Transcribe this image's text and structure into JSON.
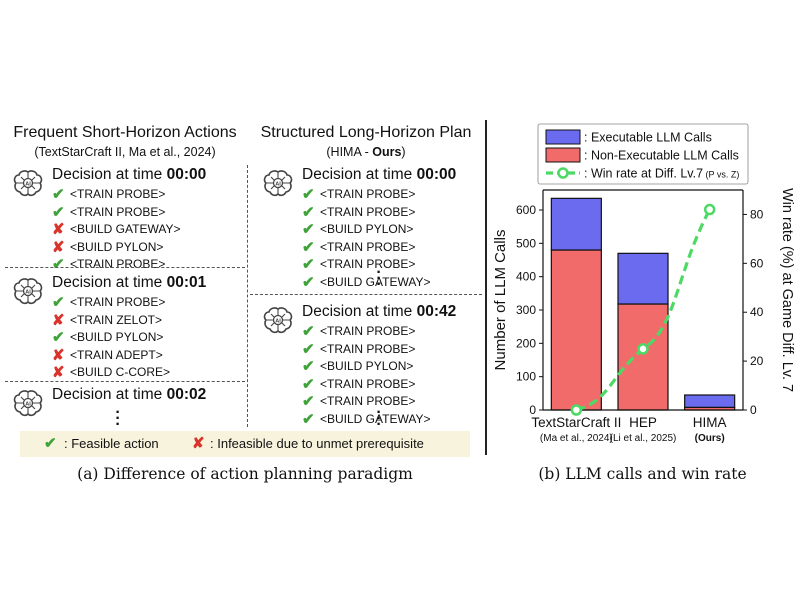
{
  "left": {
    "title": "Frequent Short-Horizon Actions",
    "subtitle": "(TextStarCraft II, Ma et al., 2024)",
    "blocks": [
      {
        "prefix": "Decision at time ",
        "time": "00:00",
        "actions": [
          {
            "ok": true,
            "text": "<TRAIN PROBE>"
          },
          {
            "ok": true,
            "text": "<TRAIN PROBE>"
          },
          {
            "ok": false,
            "text": "<BUILD GATEWAY>"
          },
          {
            "ok": false,
            "text": "<BUILD PYLON>"
          },
          {
            "ok": true,
            "text": "<TRAIN PROBE>"
          }
        ]
      },
      {
        "prefix": "Decision at time ",
        "time": "00:01",
        "actions": [
          {
            "ok": true,
            "text": "<TRAIN PROBE>"
          },
          {
            "ok": false,
            "text": "<TRAIN ZELOT>"
          },
          {
            "ok": true,
            "text": "<BUILD PYLON>"
          },
          {
            "ok": false,
            "text": "<TRAIN ADEPT>"
          },
          {
            "ok": false,
            "text": "<BUILD C-CORE>"
          }
        ]
      },
      {
        "prefix": "Decision at time ",
        "time": "00:02",
        "actions": []
      }
    ]
  },
  "right": {
    "title": "Structured Long-Horizon Plan",
    "subtitle_prefix": "(HIMA - ",
    "subtitle_bold": "Ours",
    "subtitle_suffix": ")",
    "blocks": [
      {
        "prefix": "Decision at time ",
        "time": "00:00",
        "actions": [
          {
            "ok": true,
            "text": "<TRAIN PROBE>"
          },
          {
            "ok": true,
            "text": "<TRAIN PROBE>"
          },
          {
            "ok": true,
            "text": "<BUILD PYLON>"
          },
          {
            "ok": true,
            "text": "<TRAIN PROBE>"
          },
          {
            "ok": true,
            "text": "<TRAIN PROBE>"
          },
          {
            "ok": true,
            "text": "<BUILD GATEWAY>"
          }
        ]
      },
      {
        "prefix": "Decision at time ",
        "time": "00:42",
        "actions": [
          {
            "ok": true,
            "text": "<TRAIN PROBE>"
          },
          {
            "ok": true,
            "text": "<TRAIN PROBE>"
          },
          {
            "ok": true,
            "text": "<BUILD PYLON>"
          },
          {
            "ok": true,
            "text": "<TRAIN PROBE>"
          },
          {
            "ok": true,
            "text": "<TRAIN PROBE>"
          },
          {
            "ok": true,
            "text": "<BUILD GATEWAY>"
          }
        ]
      }
    ]
  },
  "legend": {
    "feasible": ": Feasible action",
    "infeasible": ": Infeasible due to unmet prerequisite"
  },
  "caption_a": "(a) Difference of action planning paradigm",
  "caption_b": "(b) LLM calls and win rate",
  "icons": {
    "check": "check-icon",
    "cross": "cross-icon",
    "brain": "brain-icon"
  },
  "colors": {
    "check": "#3fa33a",
    "cross": "#d9342b",
    "executable": "#6b6bf0",
    "non_executable": "#f26b6b",
    "winrate": "#4cd964",
    "legend_bg": "#f8f3dc"
  },
  "chart_data": {
    "type": "bar",
    "categories": [
      {
        "name": "TextStarCraft II",
        "sub": "(Ma et al., 2024)",
        "sub_bold": false
      },
      {
        "name": "HEP",
        "sub": "(Li et al., 2025)",
        "sub_bold": false
      },
      {
        "name": "HIMA",
        "sub": "(Ours)",
        "sub_bold": true
      }
    ],
    "series": [
      {
        "name": ": Non-Executable LLM Calls",
        "values": [
          480,
          318,
          8
        ],
        "color": "#f26b6b"
      },
      {
        "name": ": Executable LLM Calls",
        "values": [
          155,
          152,
          37
        ],
        "color": "#6b6bf0"
      }
    ],
    "line": {
      "name": ": Win rate at Diff. Lv.7",
      "name_suffix": "(P vs. Z)",
      "values": [
        0,
        25,
        82
      ],
      "color": "#4cd964"
    },
    "ylabel": "Number of  LLM Calls",
    "ylabel_right": "Win rate (%) at Game Diff. Lv. 7",
    "ylim": [
      0,
      660
    ],
    "ylim_right": [
      0,
      90
    ],
    "yticks": [
      0,
      100,
      200,
      300,
      400,
      500,
      600
    ],
    "yticks_right": [
      0,
      20,
      40,
      60,
      80
    ],
    "legend_position": "top",
    "stacked": true
  }
}
